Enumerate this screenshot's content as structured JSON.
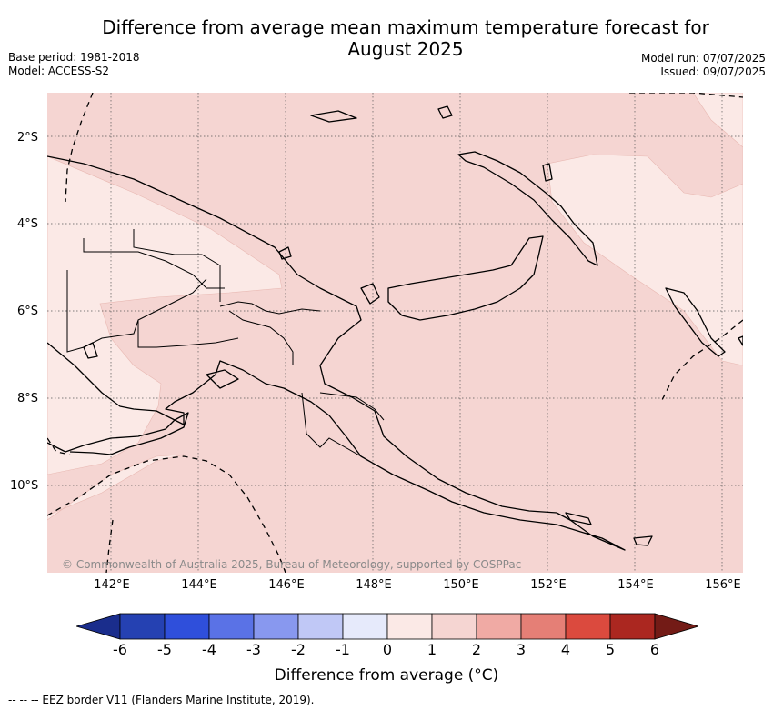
{
  "header": {
    "title_line1": "Difference from average mean maximum temperature forecast for",
    "title_line2": "August 2025",
    "base_period": "Base period: 1981-2018",
    "model": "Model: ACCESS-S2",
    "model_run": "Model run: 07/07/2025",
    "issued": "Issued: 09/07/2025"
  },
  "axes": {
    "lat_labels": [
      "2°S",
      "4°S",
      "6°S",
      "8°S",
      "10°S"
    ],
    "lon_labels": [
      "142°E",
      "144°E",
      "146°E",
      "148°E",
      "150°E",
      "152°E",
      "154°E",
      "156°E"
    ]
  },
  "credit": "© Commonwealth of Australia 2025, Bureau of Meteorology, supported by COSPPac",
  "colorbar": {
    "ticks": [
      "-6",
      "-5",
      "-4",
      "-3",
      "-2",
      "-1",
      "0",
      "1",
      "2",
      "3",
      "4",
      "5",
      "6"
    ],
    "colors": [
      "#1a2d8c",
      "#2541b2",
      "#2f4fdb",
      "#5a72e6",
      "#8898ef",
      "#c0c8f6",
      "#e6eafb",
      "#fbe9e6",
      "#f5d5d2",
      "#f0aaa4",
      "#e57f76",
      "#db4a3e",
      "#ab2720",
      "#731b16"
    ],
    "label": "Difference from average (°C)"
  },
  "legend_note": "--  --  -- EEZ border V11 (Flanders Marine Institute, 2019).",
  "chart_data": {
    "type": "heatmap",
    "variable": "Difference from average mean maximum temperature (°C)",
    "lon_range": [
      140.5,
      156.5
    ],
    "lat_range": [
      -12,
      -1
    ],
    "dominant_category": "1 to 2",
    "secondary_category": "0 to 1"
  }
}
